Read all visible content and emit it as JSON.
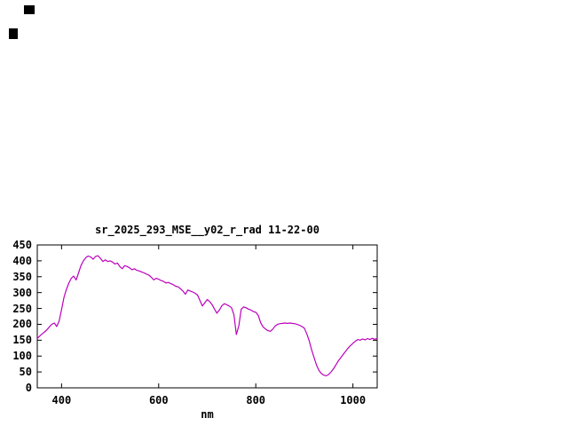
{
  "screen": {
    "background": "#ffffff"
  },
  "chart_data": {
    "type": "line",
    "title": "sr_2025_293_MSE__y02_r_rad 11-22-00",
    "xlabel": "nm",
    "ylabel": "",
    "xlim": [
      350,
      1050
    ],
    "ylim": [
      0,
      450
    ],
    "x_ticks": [
      400,
      600,
      800,
      1000
    ],
    "y_ticks": [
      0,
      50,
      100,
      150,
      200,
      250,
      300,
      350,
      400,
      450
    ],
    "grid": false,
    "legend": "none",
    "axis_color": "#000000",
    "line_color": "#bb00bb",
    "series": [
      {
        "name": "sr_2025_293_MSE__y02_r_rad",
        "x": [
          350,
          355,
          360,
          365,
          370,
          375,
          380,
          385,
          390,
          395,
          400,
          405,
          410,
          415,
          420,
          425,
          430,
          435,
          440,
          445,
          450,
          455,
          460,
          465,
          470,
          475,
          480,
          485,
          490,
          495,
          500,
          505,
          510,
          515,
          520,
          525,
          530,
          535,
          540,
          545,
          550,
          555,
          560,
          565,
          570,
          575,
          580,
          585,
          590,
          595,
          600,
          605,
          610,
          615,
          620,
          625,
          630,
          635,
          640,
          645,
          650,
          655,
          660,
          665,
          670,
          675,
          680,
          685,
          690,
          695,
          700,
          705,
          710,
          715,
          720,
          725,
          730,
          735,
          740,
          745,
          750,
          755,
          760,
          765,
          770,
          775,
          780,
          785,
          790,
          795,
          800,
          805,
          810,
          815,
          820,
          825,
          830,
          835,
          840,
          845,
          850,
          855,
          860,
          865,
          870,
          875,
          880,
          885,
          890,
          895,
          900,
          905,
          910,
          915,
          920,
          925,
          930,
          935,
          940,
          945,
          950,
          955,
          960,
          965,
          970,
          975,
          980,
          985,
          990,
          995,
          1000,
          1005,
          1010,
          1015,
          1020,
          1025,
          1030,
          1035,
          1040,
          1045,
          1050
        ],
        "y": [
          155,
          163,
          170,
          176,
          183,
          192,
          200,
          204,
          193,
          210,
          247,
          285,
          310,
          330,
          345,
          352,
          340,
          362,
          385,
          400,
          410,
          415,
          412,
          405,
          414,
          416,
          408,
          398,
          403,
          398,
          400,
          396,
          390,
          393,
          382,
          375,
          385,
          382,
          378,
          372,
          375,
          370,
          368,
          365,
          362,
          358,
          355,
          348,
          340,
          345,
          342,
          338,
          335,
          330,
          332,
          328,
          325,
          320,
          318,
          312,
          305,
          295,
          308,
          305,
          302,
          298,
          292,
          275,
          258,
          268,
          278,
          272,
          262,
          248,
          235,
          245,
          258,
          265,
          262,
          258,
          252,
          230,
          168,
          195,
          248,
          255,
          252,
          248,
          245,
          240,
          238,
          228,
          205,
          192,
          185,
          180,
          178,
          185,
          195,
          200,
          202,
          203,
          204,
          203,
          204,
          203,
          202,
          200,
          197,
          193,
          188,
          170,
          148,
          120,
          95,
          72,
          55,
          45,
          40,
          38,
          42,
          50,
          60,
          72,
          85,
          95,
          105,
          115,
          125,
          133,
          140,
          147,
          152,
          150,
          154,
          151,
          155,
          152,
          156,
          153,
          155
        ]
      }
    ]
  }
}
